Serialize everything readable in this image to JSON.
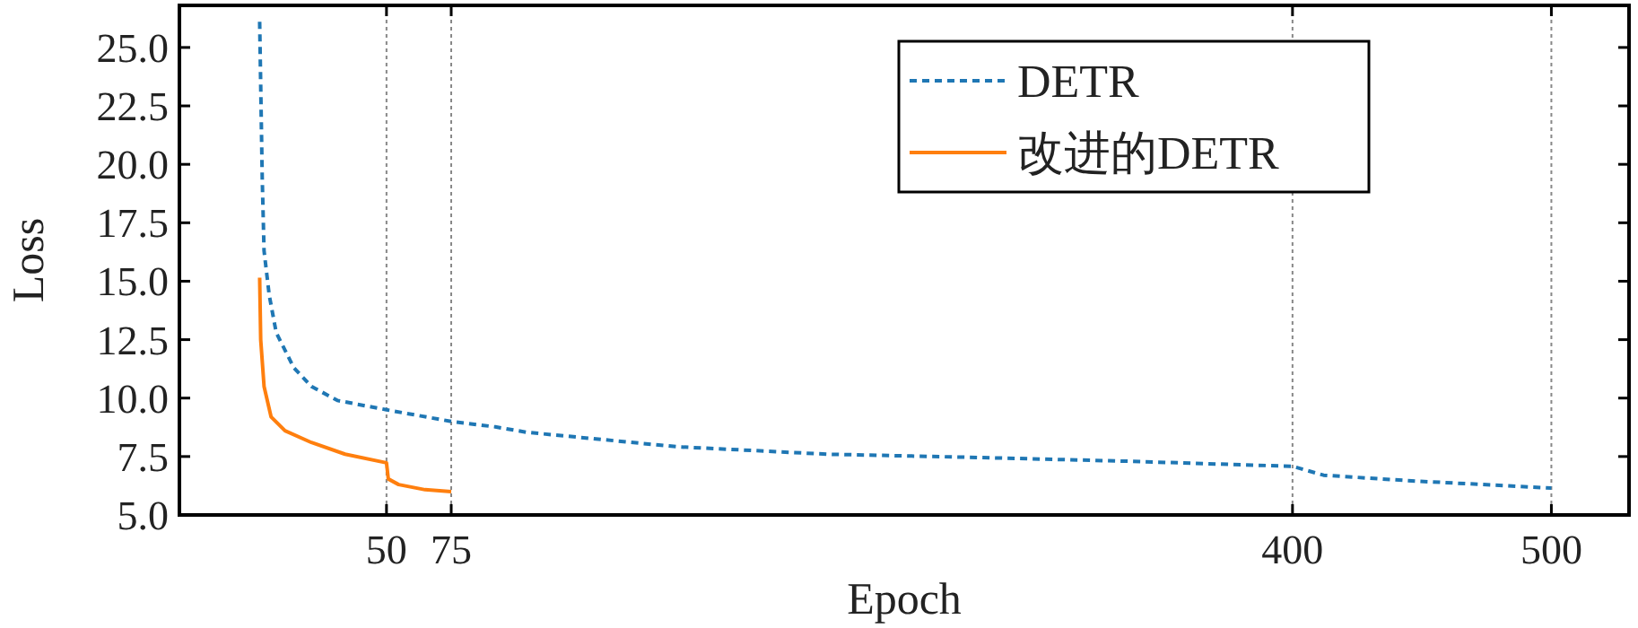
{
  "chart_data": {
    "type": "line",
    "xlabel": "Epoch",
    "ylabel": "Loss",
    "xlim": [
      -30,
      530
    ],
    "ylim": [
      5,
      26.8
    ],
    "xticks": [
      50,
      75,
      400,
      500
    ],
    "yticks": [
      {
        "value": 5,
        "label": "5.0"
      },
      {
        "value": 7.5,
        "label": "7.5"
      },
      {
        "value": 10,
        "label": "10.0"
      },
      {
        "value": 12.5,
        "label": "12.5"
      },
      {
        "value": 15,
        "label": "15.0"
      },
      {
        "value": 17.5,
        "label": "17.5"
      },
      {
        "value": 20,
        "label": "20.0"
      },
      {
        "value": 22.5,
        "label": "22.5"
      },
      {
        "value": 25,
        "label": "25.0"
      }
    ],
    "grid": "x",
    "legend": "top",
    "marker": "none",
    "series": [
      {
        "name": "DETR",
        "color": "#1f77b4",
        "line_style": "dashed",
        "x": [
          1,
          2,
          2.7,
          4.7,
          7.4,
          14.2,
          21,
          31,
          50,
          75,
          92,
          104,
          162,
          220,
          278,
          336,
          400,
          412,
          446,
          500
        ],
        "values": [
          26.1,
          19.4,
          16.3,
          14.4,
          12.8,
          11.3,
          10.5,
          9.9,
          9.5,
          9.0,
          8.77,
          8.54,
          7.92,
          7.6,
          7.46,
          7.3,
          7.08,
          6.7,
          6.46,
          6.15
        ]
      },
      {
        "name": "改进的DETR",
        "color": "#ff7f0e",
        "line_style": "solid",
        "x": [
          1,
          1.4,
          2.7,
          5.4,
          10.8,
          21,
          34,
          50,
          50.7,
          54.7,
          64.9,
          75
        ],
        "values": [
          15.15,
          12.5,
          10.5,
          9.2,
          8.6,
          8.1,
          7.6,
          7.23,
          6.54,
          6.3,
          6.08,
          6.0
        ]
      }
    ]
  }
}
